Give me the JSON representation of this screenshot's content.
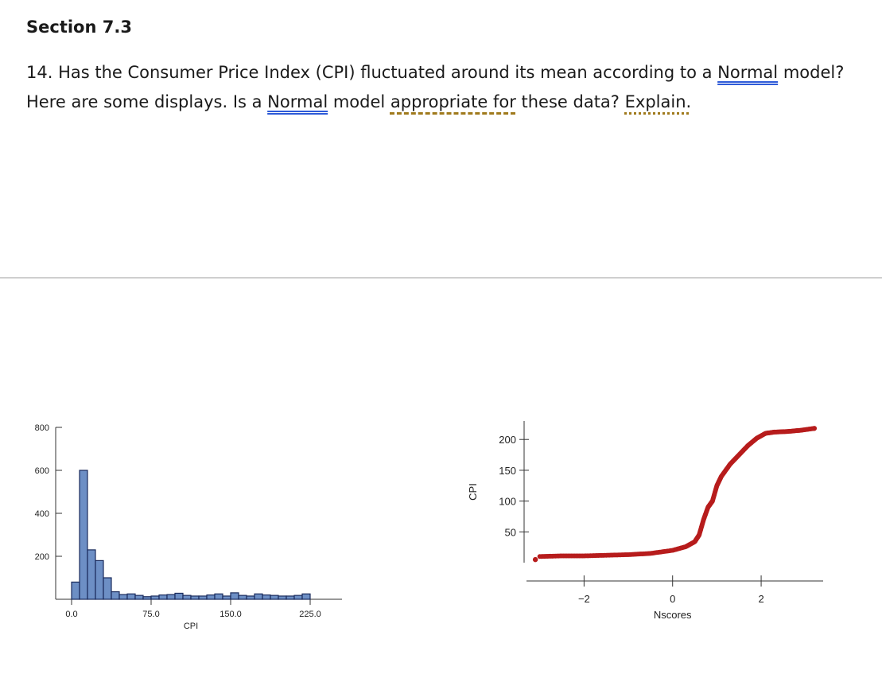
{
  "document": {
    "section_title": "Section 7.3",
    "question": {
      "part1": "14. Has the Consumer Price Index (CPI) fluctuated around its mean according to a ",
      "normal1": "Normal",
      "part2": " model? Here are some displays. Is a ",
      "normal2": "Normal",
      "part3": " model ",
      "appropriate_for": "appropriate for",
      "part4": " these data? ",
      "explain": "Explain."
    }
  },
  "chart_data": [
    {
      "type": "bar",
      "xlabel": "CPI",
      "ylabel": "",
      "x_ticks": [
        "0.0",
        "75.0",
        "150.0",
        "225.0"
      ],
      "y_ticks": [
        "200",
        "400",
        "600",
        "800"
      ],
      "ylim": [
        0,
        800
      ],
      "xlim": [
        -15,
        255
      ],
      "bin_width": 7.5,
      "bin_starts": [
        0,
        7.5,
        15,
        22.5,
        30,
        37.5,
        45,
        52.5,
        60,
        67.5,
        75,
        82.5,
        90,
        97.5,
        105,
        112.5,
        120,
        127.5,
        135,
        142.5,
        150,
        157.5,
        165,
        172.5,
        180,
        187.5,
        195,
        202.5,
        210,
        217.5
      ],
      "counts": [
        80,
        600,
        230,
        180,
        100,
        35,
        22,
        25,
        18,
        12,
        15,
        20,
        22,
        28,
        18,
        15,
        15,
        20,
        25,
        15,
        30,
        18,
        15,
        25,
        20,
        18,
        15,
        15,
        18,
        25
      ]
    },
    {
      "type": "scatter",
      "xlabel": "Nscores",
      "ylabel": "CPI",
      "x_ticks": [
        "-2",
        "0",
        "2"
      ],
      "y_ticks": [
        "50",
        "100",
        "150",
        "200"
      ],
      "xlim": [
        -3.3,
        3.4
      ],
      "ylim": [
        0,
        230
      ],
      "curve": [
        [
          -3.1,
          5
        ],
        [
          -3.0,
          10
        ],
        [
          -2.5,
          11
        ],
        [
          -2.0,
          11
        ],
        [
          -1.5,
          12
        ],
        [
          -1.0,
          13
        ],
        [
          -0.5,
          15
        ],
        [
          0.0,
          20
        ],
        [
          0.3,
          26
        ],
        [
          0.5,
          34
        ],
        [
          0.6,
          45
        ],
        [
          0.7,
          70
        ],
        [
          0.8,
          90
        ],
        [
          0.9,
          100
        ],
        [
          1.0,
          125
        ],
        [
          1.1,
          140
        ],
        [
          1.3,
          160
        ],
        [
          1.5,
          175
        ],
        [
          1.7,
          190
        ],
        [
          1.9,
          202
        ],
        [
          2.1,
          210
        ],
        [
          2.3,
          212
        ],
        [
          2.6,
          213
        ],
        [
          2.9,
          215
        ],
        [
          3.2,
          218
        ]
      ],
      "color": "#b71c1c"
    }
  ],
  "colors": {
    "bar_fill": "#6d8fc5",
    "bar_stroke": "#1a2b5c",
    "point": "#b71c1c",
    "link_underline": "#2f5bd8",
    "review_underline": "#a07a1c"
  }
}
